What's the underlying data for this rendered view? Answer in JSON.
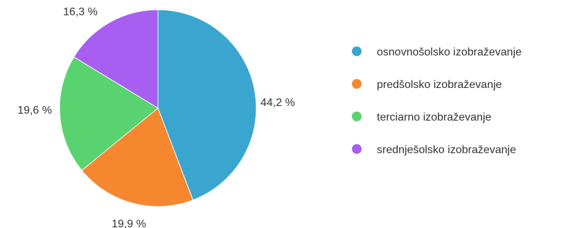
{
  "chart_data": {
    "type": "pie",
    "legend_position": "right",
    "slices": [
      {
        "label": "osnovnošolsko izobraževanje",
        "value": 44.2,
        "value_text": "44,2 %",
        "color": "#3aa6d0"
      },
      {
        "label": "predšolsko izobraževanje",
        "value": 19.9,
        "value_text": "19,9 %",
        "color": "#f5872f"
      },
      {
        "label": "terciarno izobraževanje",
        "value": 19.6,
        "value_text": "19,6 %",
        "color": "#59d36f"
      },
      {
        "label": "srednješolsko izobraževanje",
        "value": 16.3,
        "value_text": "16,3 %",
        "color": "#a95ef2"
      }
    ]
  }
}
